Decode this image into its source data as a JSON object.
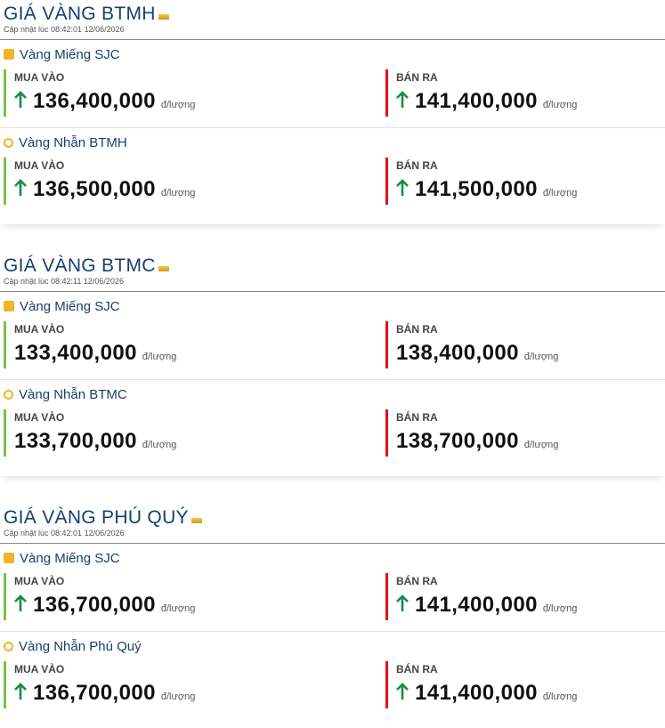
{
  "sections": [
    {
      "title": "GIÁ VÀNG BTMH",
      "updated": "Cập nhật lúc 08:42:01 12/06/2026",
      "products": [
        {
          "name": "Vàng Miếng SJC",
          "icon": "bar",
          "buy_label": "MUA VÀO",
          "buy": "136,400,000",
          "buy_unit": "đ/lượng",
          "sell_label": "BÁN RA",
          "sell": "141,400,000",
          "sell_unit": "đ/lượng",
          "trend": "up"
        },
        {
          "name": "Vàng Nhẫn BTMH",
          "icon": "ring",
          "buy_label": "MUA VÀO",
          "buy": "136,500,000",
          "buy_unit": "đ/lượng",
          "sell_label": "BÁN RA",
          "sell": "141,500,000",
          "sell_unit": "đ/lượng",
          "trend": "up"
        }
      ]
    },
    {
      "title": "GIÁ VÀNG BTMC",
      "updated": "Cập nhật lúc 08:42:11 12/06/2026",
      "products": [
        {
          "name": "Vàng Miếng SJC",
          "icon": "bar",
          "buy_label": "MUA VÀO",
          "buy": "133,400,000",
          "buy_unit": "đ/lượng",
          "sell_label": "BÁN RA",
          "sell": "138,400,000",
          "sell_unit": "đ/lượng",
          "trend": null
        },
        {
          "name": "Vàng Nhẫn BTMC",
          "icon": "ring",
          "buy_label": "MUA VÀO",
          "buy": "133,700,000",
          "buy_unit": "đ/lượng",
          "sell_label": "BÁN RA",
          "sell": "138,700,000",
          "sell_unit": "đ/lượng",
          "trend": null
        }
      ]
    },
    {
      "title": "GIÁ VÀNG PHÚ QUÝ",
      "updated": "Cập nhật lúc 08:42:01 12/06/2026",
      "products": [
        {
          "name": "Vàng Miếng SJC",
          "icon": "bar",
          "buy_label": "MUA VÀO",
          "buy": "136,700,000",
          "buy_unit": "đ/lượng",
          "sell_label": "BÁN RA",
          "sell": "141,400,000",
          "sell_unit": "đ/lượng",
          "trend": "up"
        },
        {
          "name": "Vàng Nhẫn Phú Quý",
          "icon": "ring",
          "buy_label": "MUA VÀO",
          "buy": "136,700,000",
          "buy_unit": "đ/lượng",
          "sell_label": "BÁN RA",
          "sell": "141,400,000",
          "sell_unit": "đ/lượng",
          "trend": "up"
        }
      ]
    }
  ]
}
